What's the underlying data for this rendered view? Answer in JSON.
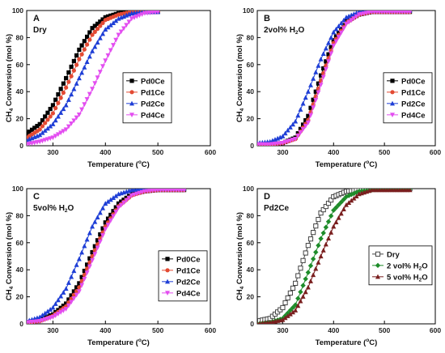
{
  "chart_data": [
    {
      "type": "line",
      "panel": "A",
      "note": "Dry",
      "xlabel": "Temperature (°C)",
      "ylabel": "CH4 Conversion (mol %)",
      "xlim": [
        250,
        600
      ],
      "ylim": [
        0,
        100
      ],
      "xticks": [
        300,
        400,
        500,
        600
      ],
      "yticks": [
        0,
        20,
        40,
        60,
        80,
        100
      ],
      "legend_position": "middle-right",
      "series": [
        {
          "name": "Pd0Ce",
          "color": "#000000",
          "marker": "square",
          "x": [
            250,
            275,
            300,
            325,
            350,
            375,
            400,
            425,
            450,
            475,
            500
          ],
          "y": [
            9,
            16,
            30,
            50,
            71,
            87,
            95,
            98,
            99,
            99,
            99
          ]
        },
        {
          "name": "Pd1Ce",
          "color": "#e34a33",
          "marker": "circle",
          "x": [
            250,
            275,
            300,
            325,
            350,
            375,
            400,
            425,
            450,
            475,
            500
          ],
          "y": [
            6,
            12,
            24,
            43,
            64,
            82,
            93,
            97,
            99,
            99,
            99
          ]
        },
        {
          "name": "Pd2Ce",
          "color": "#1f3fd6",
          "marker": "triangle-up",
          "x": [
            250,
            275,
            300,
            325,
            350,
            375,
            400,
            425,
            450,
            475,
            500
          ],
          "y": [
            4,
            8,
            16,
            30,
            50,
            70,
            86,
            94,
            98,
            99,
            99
          ]
        },
        {
          "name": "Pd4Ce",
          "color": "#e34ef0",
          "marker": "triangle-down",
          "x": [
            250,
            275,
            300,
            325,
            350,
            375,
            400,
            425,
            450,
            475,
            500
          ],
          "y": [
            1,
            3,
            6,
            12,
            23,
            42,
            63,
            82,
            94,
            98,
            99
          ]
        }
      ]
    },
    {
      "type": "line",
      "panel": "B",
      "note": "2vol% H2O",
      "xlabel": "Temperature (°C)",
      "ylabel": "CH4 Conversion (mol %)",
      "xlim": [
        250,
        600
      ],
      "ylim": [
        0,
        100
      ],
      "xticks": [
        300,
        400,
        500,
        600
      ],
      "yticks": [
        0,
        20,
        40,
        60,
        80,
        100
      ],
      "legend_position": "middle-right",
      "series": [
        {
          "name": "Pd0Ce",
          "color": "#000000",
          "marker": "square",
          "x": [
            250,
            275,
            300,
            325,
            350,
            375,
            400,
            425,
            450,
            475,
            500,
            525,
            550
          ],
          "y": [
            1,
            1,
            2,
            6,
            22,
            52,
            78,
            92,
            97,
            99,
            99,
            99,
            99
          ]
        },
        {
          "name": "Pd1Ce",
          "color": "#e34a33",
          "marker": "circle",
          "x": [
            250,
            275,
            300,
            325,
            350,
            375,
            400,
            425,
            450,
            475,
            500,
            525,
            550
          ],
          "y": [
            1,
            1,
            2,
            5,
            19,
            48,
            76,
            91,
            97,
            99,
            99,
            99,
            99
          ]
        },
        {
          "name": "Pd2Ce",
          "color": "#1f3fd6",
          "marker": "triangle-up",
          "x": [
            250,
            275,
            300,
            325,
            350,
            375,
            400,
            425,
            450,
            475,
            500,
            525,
            550
          ],
          "y": [
            2,
            3,
            7,
            18,
            40,
            64,
            84,
            95,
            99,
            100,
            100,
            100,
            100
          ]
        },
        {
          "name": "Pd4Ce",
          "color": "#e34ef0",
          "marker": "triangle-down",
          "x": [
            250,
            275,
            300,
            325,
            350,
            375,
            400,
            425,
            450,
            475,
            500,
            525,
            550
          ],
          "y": [
            1,
            1,
            2,
            5,
            17,
            45,
            74,
            90,
            97,
            99,
            99,
            99,
            99
          ]
        }
      ]
    },
    {
      "type": "line",
      "panel": "C",
      "note": "5vol% H2O",
      "xlabel": "Temperature (°C)",
      "ylabel": "CH4 Conversion (mol %)",
      "xlim": [
        250,
        600
      ],
      "ylim": [
        0,
        100
      ],
      "xticks": [
        300,
        400,
        500,
        600
      ],
      "yticks": [
        0,
        20,
        40,
        60,
        80,
        100
      ],
      "legend_position": "middle-right",
      "series": [
        {
          "name": "Pd0Ce",
          "color": "#000000",
          "marker": "square",
          "x": [
            250,
            275,
            300,
            325,
            350,
            375,
            400,
            425,
            450,
            475,
            500,
            525,
            550
          ],
          "y": [
            1,
            3,
            7,
            15,
            30,
            53,
            75,
            89,
            96,
            98,
            99,
            99,
            99
          ]
        },
        {
          "name": "Pd1Ce",
          "color": "#e34a33",
          "marker": "circle",
          "x": [
            250,
            275,
            300,
            325,
            350,
            375,
            400,
            425,
            450,
            475,
            500,
            525,
            550
          ],
          "y": [
            1,
            2,
            6,
            13,
            27,
            50,
            72,
            87,
            95,
            98,
            99,
            99,
            99
          ]
        },
        {
          "name": "Pd2Ce",
          "color": "#1f3fd6",
          "marker": "triangle-up",
          "x": [
            250,
            275,
            300,
            325,
            350,
            375,
            400,
            425,
            450,
            475,
            500,
            525,
            550
          ],
          "y": [
            2,
            5,
            12,
            26,
            48,
            72,
            89,
            96,
            99,
            100,
            100,
            100,
            100
          ]
        },
        {
          "name": "Pd4Ce",
          "color": "#e34ef0",
          "marker": "triangle-down",
          "x": [
            250,
            275,
            300,
            325,
            350,
            375,
            400,
            425,
            450,
            475,
            500,
            525,
            550
          ],
          "y": [
            1,
            2,
            5,
            11,
            24,
            47,
            70,
            86,
            95,
            98,
            99,
            99,
            99
          ]
        }
      ]
    },
    {
      "type": "line",
      "panel": "D",
      "note": "Pd2Ce",
      "xlabel": "Temperature (°C)",
      "ylabel": "CH4 Conversion (mol %)",
      "xlim": [
        250,
        600
      ],
      "ylim": [
        0,
        100
      ],
      "xticks": [
        300,
        400,
        500,
        600
      ],
      "yticks": [
        0,
        20,
        40,
        60,
        80,
        100
      ],
      "legend_position": "middle-right",
      "series": [
        {
          "name": "Dry",
          "color": "#444444",
          "marker": "square-open",
          "x": [
            250,
            275,
            300,
            325,
            350,
            375,
            400,
            425,
            450,
            475,
            500,
            525,
            550
          ],
          "y": [
            2,
            4,
            12,
            30,
            58,
            82,
            94,
            98,
            99,
            100,
            100,
            100,
            100
          ]
        },
        {
          "name": "2 vol% H2O",
          "color": "#1e8c2a",
          "marker": "diamond",
          "x": [
            250,
            275,
            300,
            325,
            350,
            375,
            400,
            425,
            450,
            475,
            500,
            525,
            550
          ],
          "y": [
            0,
            1,
            4,
            14,
            38,
            63,
            84,
            94,
            98,
            99,
            100,
            100,
            100
          ]
        },
        {
          "name": "5 vol% H2O",
          "color": "#7a1f1f",
          "marker": "triangle-up",
          "x": [
            250,
            275,
            300,
            325,
            350,
            375,
            400,
            425,
            450,
            475,
            500,
            525,
            550
          ],
          "y": [
            0,
            1,
            3,
            10,
            27,
            50,
            72,
            88,
            96,
            99,
            99,
            99,
            99
          ]
        }
      ]
    }
  ]
}
